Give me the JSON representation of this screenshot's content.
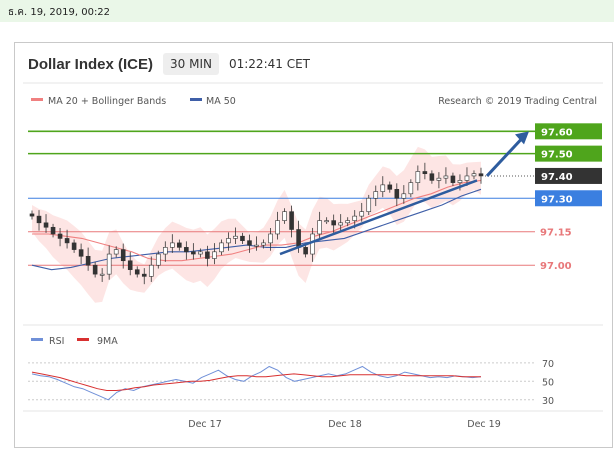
{
  "top_date": "ธ.ค. 19, 2019, 00:22",
  "header": {
    "title": "Dollar Index (ICE)",
    "timeframe": "30 MIN",
    "time": "01:22:41 CET"
  },
  "legend": {
    "ma20": "MA 20 + Bollinger Bands",
    "ma50": "MA 50",
    "source": "Research © 2019 Trading Central",
    "rsi": "RSI",
    "rsi9": "9MA"
  },
  "colors": {
    "ma20": "#f08080",
    "ma50": "#3f5fa8",
    "band": "#fcd4d2",
    "green": "#4fa51c",
    "red": "#e8787a",
    "blue": "#3b7fe0",
    "dark": "#333333",
    "trend": "#2e5c9e",
    "rsi": "#7090d8",
    "rsi_ma": "#d83030"
  },
  "chart_data": [
    {
      "type": "candlestick",
      "title": "Dollar Index (ICE)",
      "interval": "30 MIN",
      "x_ticks": [
        "Dec 17",
        "Dec 18",
        "Dec 19"
      ],
      "ylim": [
        96.75,
        97.7
      ],
      "price_labels": [
        {
          "value": "97.60",
          "style": "box",
          "color": "green"
        },
        {
          "value": "97.50",
          "style": "box",
          "color": "green"
        },
        {
          "value": "97.40",
          "style": "box",
          "color": "dark"
        },
        {
          "value": "97.30",
          "style": "box",
          "color": "blue"
        },
        {
          "value": "97.15",
          "style": "text",
          "color": "red"
        },
        {
          "value": "97.00",
          "style": "text",
          "color": "red"
        }
      ],
      "levels": [
        97.6,
        97.5,
        97.3,
        97.15,
        97.0
      ],
      "last_price": 97.4,
      "close_series": [
        97.22,
        97.19,
        97.17,
        97.14,
        97.12,
        97.1,
        97.07,
        97.04,
        97.0,
        96.96,
        96.96,
        97.05,
        97.07,
        97.02,
        96.98,
        96.96,
        96.95,
        97.0,
        97.05,
        97.08,
        97.1,
        97.08,
        97.06,
        97.05,
        97.06,
        97.03,
        97.06,
        97.1,
        97.12,
        97.13,
        97.11,
        97.09,
        97.09,
        97.1,
        97.14,
        97.2,
        97.24,
        97.16,
        97.08,
        97.05,
        97.14,
        97.2,
        97.2,
        97.18,
        97.19,
        97.2,
        97.22,
        97.24,
        97.3,
        97.33,
        97.36,
        97.34,
        97.3,
        97.32,
        97.37,
        97.42,
        97.41,
        97.38,
        97.39,
        97.4,
        97.37,
        97.38,
        97.4,
        97.41,
        97.4
      ],
      "ma20": [
        97.14,
        97.14,
        97.13,
        97.12,
        97.1,
        97.08,
        97.06,
        97.03,
        97.02,
        97.02,
        97.03,
        97.04,
        97.05,
        97.07,
        97.09,
        97.09,
        97.1,
        97.13,
        97.15,
        97.18,
        97.21,
        97.24,
        97.27,
        97.3,
        97.32,
        97.35,
        97.37,
        97.38
      ],
      "ma50": [
        97.0,
        96.98,
        96.99,
        97.01,
        97.03,
        97.04,
        97.05,
        97.06,
        97.06,
        97.07,
        97.08,
        97.09,
        97.08,
        97.08,
        97.1,
        97.11,
        97.12,
        97.15,
        97.18,
        97.21,
        97.24,
        97.27,
        97.31,
        97.34
      ],
      "trendline": {
        "from": 97.05,
        "to": 97.38
      },
      "arrow_target": 97.6
    },
    {
      "type": "line",
      "title": "RSI",
      "series": [
        {
          "name": "RSI",
          "values": [
            58,
            56,
            55,
            52,
            48,
            44,
            42,
            38,
            34,
            30,
            38,
            42,
            40,
            44,
            46,
            48,
            50,
            52,
            50,
            48,
            54,
            58,
            62,
            56,
            52,
            50,
            56,
            60,
            66,
            62,
            54,
            50,
            52,
            54,
            56,
            58,
            56,
            58,
            62,
            66,
            60,
            56,
            54,
            56,
            60,
            58,
            56,
            54,
            55,
            54,
            56,
            55,
            54,
            55
          ]
        },
        {
          "name": "9MA",
          "values": [
            60,
            58,
            56,
            54,
            51,
            48,
            45,
            42,
            40,
            40,
            41,
            43,
            44,
            46,
            47,
            48,
            49,
            50,
            50,
            51,
            53,
            55,
            56,
            56,
            55,
            55,
            56,
            57,
            58,
            57,
            56,
            55,
            55,
            56,
            57,
            57,
            57,
            57,
            57,
            57,
            56,
            56,
            56,
            56,
            56,
            56,
            55,
            55,
            55
          ]
        }
      ],
      "yticks": [
        "70",
        "50",
        "30"
      ],
      "ylim": [
        20,
        85
      ]
    }
  ]
}
